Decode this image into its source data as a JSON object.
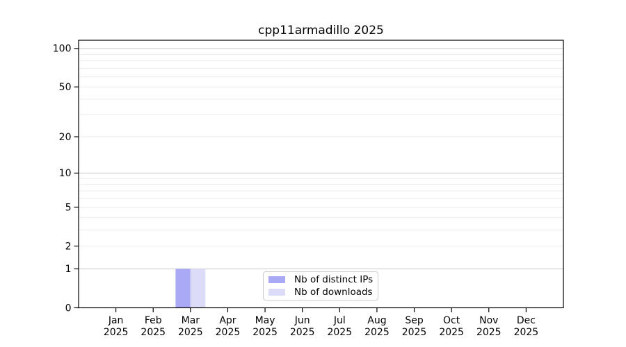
{
  "figure": {
    "background_color": "#ffffff"
  },
  "chart_data": {
    "type": "bar",
    "title": "cpp11armadillo 2025",
    "categories": [
      "Jan",
      "Feb",
      "Mar",
      "Apr",
      "May",
      "Jun",
      "Jul",
      "Aug",
      "Sep",
      "Oct",
      "Nov",
      "Dec"
    ],
    "x_tick_line2": "2025",
    "series": [
      {
        "name": "Nb of distinct IPs",
        "color": "#a9a9f5",
        "values": [
          0,
          0,
          1,
          0,
          0,
          0,
          0,
          0,
          0,
          0,
          0,
          0
        ]
      },
      {
        "name": "Nb of downloads",
        "color": "#dcdcf8",
        "values": [
          0,
          0,
          1,
          0,
          0,
          0,
          0,
          0,
          0,
          0,
          0,
          0
        ]
      }
    ],
    "y_scale": "log(value+1)",
    "ylim": [
      0,
      116
    ],
    "y_ticks": [
      0,
      1,
      2,
      5,
      10,
      20,
      50,
      100
    ],
    "y_major_gridlines": [
      1,
      10,
      100
    ],
    "y_minor_gridlines": [
      2,
      3,
      4,
      5,
      6,
      7,
      8,
      9,
      20,
      30,
      40,
      50,
      60,
      70,
      80,
      90
    ],
    "grid": "horizontal-only",
    "legend_position": "lower center",
    "axis_color": "#000000",
    "grid_major_color": "#c8c8c8",
    "grid_minor_color": "#ebebeb"
  }
}
